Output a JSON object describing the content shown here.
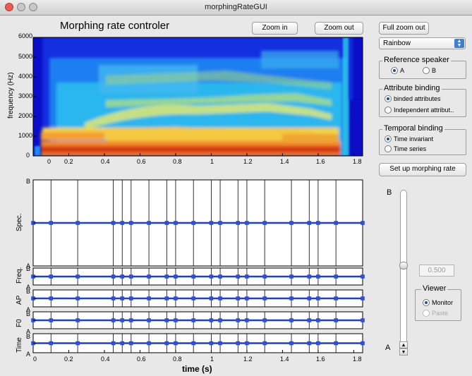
{
  "window": {
    "title": "morphingRateGUI"
  },
  "gui_title": "Morphing rate controler",
  "buttons": {
    "zoom_in": "Zoom in",
    "zoom_out": "Zoom out",
    "full_zoom_out": "Full zoom out",
    "setup": "Set up morphing rate"
  },
  "colormap": {
    "selected": "Rainbow"
  },
  "reference_speaker": {
    "title": "Reference speaker",
    "a": "A",
    "b": "B",
    "selected": "A"
  },
  "attribute_binding": {
    "title": "Attribute binding",
    "opt1": "binded attributes",
    "opt2": "Independent attribut..",
    "selected": "binded attributes"
  },
  "temporal_binding": {
    "title": "Temporal binding",
    "opt1": "Time invariant",
    "opt2": "Time series",
    "selected": "Time invariant"
  },
  "slider": {
    "top_label": "B",
    "bottom_label": "A",
    "value": "0.500"
  },
  "viewer": {
    "title": "Viewer",
    "opt1": "Monitor",
    "opt2": "Paste",
    "selected": "Monitor"
  },
  "spectrogram": {
    "ylabel": "frequency (Hz)",
    "yticks": [
      "6000",
      "5000",
      "4000",
      "3000",
      "2000",
      "1000",
      "0"
    ],
    "xticks": [
      "0",
      "0.2",
      "0.4",
      "0.6",
      "0.8",
      "1",
      "1.2",
      "1.4",
      "1.6",
      "1.8"
    ]
  },
  "rate_panels": [
    {
      "label": "Spec.",
      "top": "B",
      "bottom": "A"
    },
    {
      "label": "Freq.",
      "top": "B",
      "bottom": "A"
    },
    {
      "label": "AP",
      "top": "B",
      "bottom": "A"
    },
    {
      "label": "F0",
      "top": "B",
      "bottom": "A"
    },
    {
      "label": "Time",
      "top": "B",
      "bottom": "A"
    }
  ],
  "time_axis": {
    "xlabel": "time (s)",
    "xticks": [
      "0",
      "0.2",
      "0.4",
      "0.6",
      "0.8",
      "1",
      "1.2",
      "1.4",
      "1.6",
      "1.8"
    ]
  },
  "chart_data": {
    "type": "line",
    "x_range": [
      0,
      1.85
    ],
    "anchor_times": [
      0,
      0.1,
      0.25,
      0.45,
      0.5,
      0.55,
      0.65,
      0.75,
      0.8,
      0.9,
      1,
      1.05,
      1.15,
      1.2,
      1.3,
      1.45,
      1.55,
      1.6,
      1.7,
      1.85
    ],
    "morph_rate": 0.5
  },
  "colors": {
    "line": "#1f3fd0",
    "marker": "#3050d8"
  }
}
